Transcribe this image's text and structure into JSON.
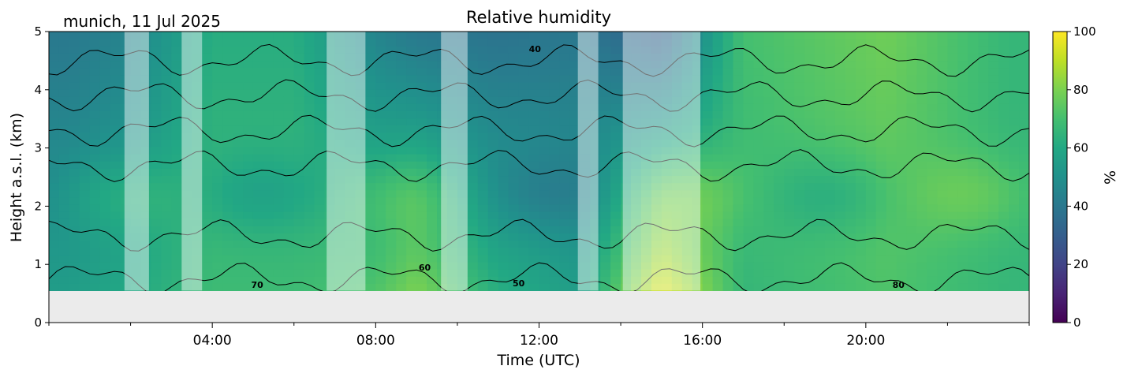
{
  "chart_data": {
    "type": "heatmap",
    "title": "Relative humidity",
    "location_date": "munich, 11 Jul 2025",
    "xlabel": "Time (UTC)",
    "ylabel": "Height a.s.l. (km)",
    "xlim": [
      "00:00",
      "24:00"
    ],
    "ylim": [
      0,
      5
    ],
    "x_ticks": [
      "04:00",
      "08:00",
      "12:00",
      "16:00",
      "20:00"
    ],
    "y_ticks": [
      "0",
      "1",
      "2",
      "3",
      "4",
      "5"
    ],
    "data_bottom_km": 0.55,
    "colorbar": {
      "label": "%",
      "range": [
        0,
        100
      ],
      "ticks": [
        "0",
        "20",
        "40",
        "60",
        "80",
        "100"
      ],
      "colormap": "viridis"
    },
    "contour_levels": [
      40,
      50,
      60,
      70,
      80
    ],
    "contour_labels": [
      {
        "text": "70",
        "time_h": 5.1,
        "height_km": 0.65
      },
      {
        "text": "60",
        "time_h": 9.2,
        "height_km": 0.95
      },
      {
        "text": "50",
        "time_h": 11.5,
        "height_km": 0.68
      },
      {
        "text": "80",
        "time_h": 20.8,
        "height_km": 0.65
      },
      {
        "text": "40",
        "time_h": 11.9,
        "height_km": 4.7
      }
    ],
    "masked_periods_h": [
      [
        1.85,
        2.45
      ],
      [
        3.25,
        3.75
      ],
      [
        6.8,
        7.75
      ],
      [
        9.6,
        10.25
      ],
      [
        12.95,
        13.45
      ],
      [
        14.05,
        15.95
      ]
    ],
    "humidity_profile_by_hour": [
      {
        "time_h": 0.5,
        "rh_low_pct": 55,
        "rh_high_pct": 40
      },
      {
        "time_h": 2.0,
        "rh_low_pct": 60,
        "rh_high_pct": 45
      },
      {
        "time_h": 4.0,
        "rh_low_pct": 68,
        "rh_high_pct": 62
      },
      {
        "time_h": 6.0,
        "rh_low_pct": 68,
        "rh_high_pct": 62
      },
      {
        "time_h": 8.0,
        "rh_low_pct": 72,
        "rh_high_pct": 45
      },
      {
        "time_h": 9.0,
        "rh_low_pct": 80,
        "rh_high_pct": 40
      },
      {
        "time_h": 11.0,
        "rh_low_pct": 62,
        "rh_high_pct": 38
      },
      {
        "time_h": 13.0,
        "rh_low_pct": 55,
        "rh_high_pct": 40
      },
      {
        "time_h": 15.0,
        "rh_low_pct": 95,
        "rh_high_pct": 30
      },
      {
        "time_h": 17.0,
        "rh_low_pct": 66,
        "rh_high_pct": 70
      },
      {
        "time_h": 20.5,
        "rh_low_pct": 72,
        "rh_high_pct": 78
      },
      {
        "time_h": 23.5,
        "rh_low_pct": 66,
        "rh_high_pct": 66
      }
    ],
    "grid": false,
    "colors": {
      "missing_data": "#ebebeb",
      "contour": "#000000"
    }
  }
}
